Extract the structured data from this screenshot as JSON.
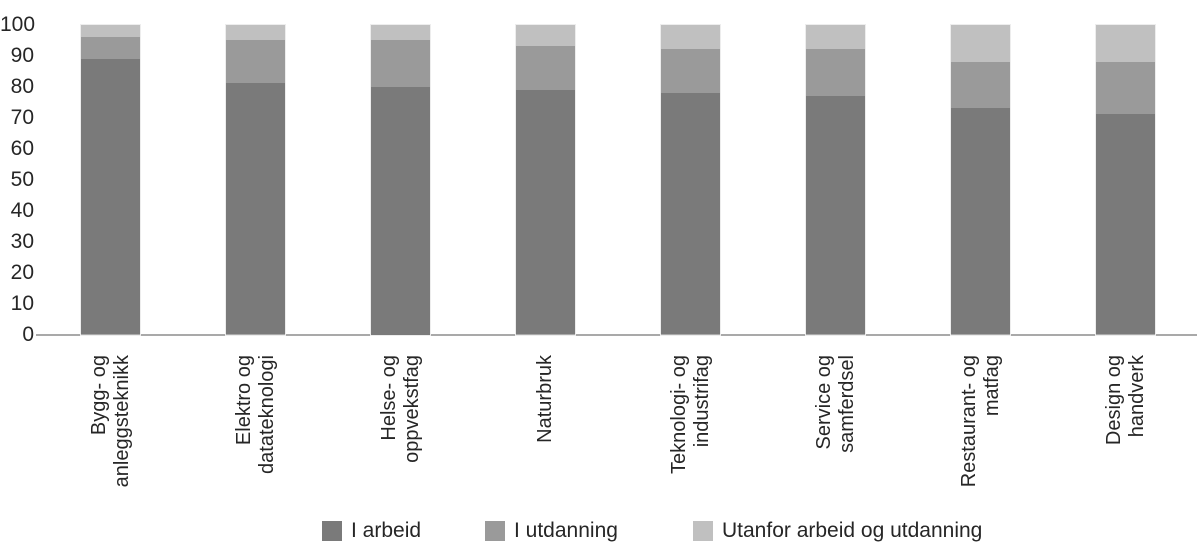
{
  "chart_data": {
    "type": "bar",
    "stacked": true,
    "orientation": "vertical",
    "title": "",
    "xlabel": "",
    "ylabel": "",
    "ylim": [
      0,
      100
    ],
    "yticks": [
      0,
      10,
      20,
      30,
      40,
      50,
      60,
      70,
      80,
      90,
      100
    ],
    "grid": false,
    "legend_position": "bottom",
    "categories": [
      "Bygg- og\nanleggsteknikk",
      "Elektro og\ndatateknologi",
      "Helse- og\noppvekstfag",
      "Naturbruk",
      "Teknologi- og\nindustrifag",
      "Service og\nsamferdsel",
      "Restaurant- og\nmatfag",
      "Design og\nhandverk"
    ],
    "series": [
      {
        "name": "I arbeid",
        "color": "#7a7a7a",
        "values": [
          89,
          81,
          80,
          79,
          78,
          77,
          73,
          71
        ]
      },
      {
        "name": "I utdanning",
        "color": "#9a9a9a",
        "values": [
          7,
          14,
          15,
          14,
          14,
          15,
          15,
          17
        ]
      },
      {
        "name": "Utanfor arbeid og utdanning",
        "color": "#c0c0c0",
        "values": [
          4,
          5,
          5,
          7,
          8,
          8,
          12,
          12
        ]
      }
    ],
    "colors": {
      "axis_line": "#a9a9a9",
      "text": "#262626",
      "background": "#ffffff"
    }
  }
}
